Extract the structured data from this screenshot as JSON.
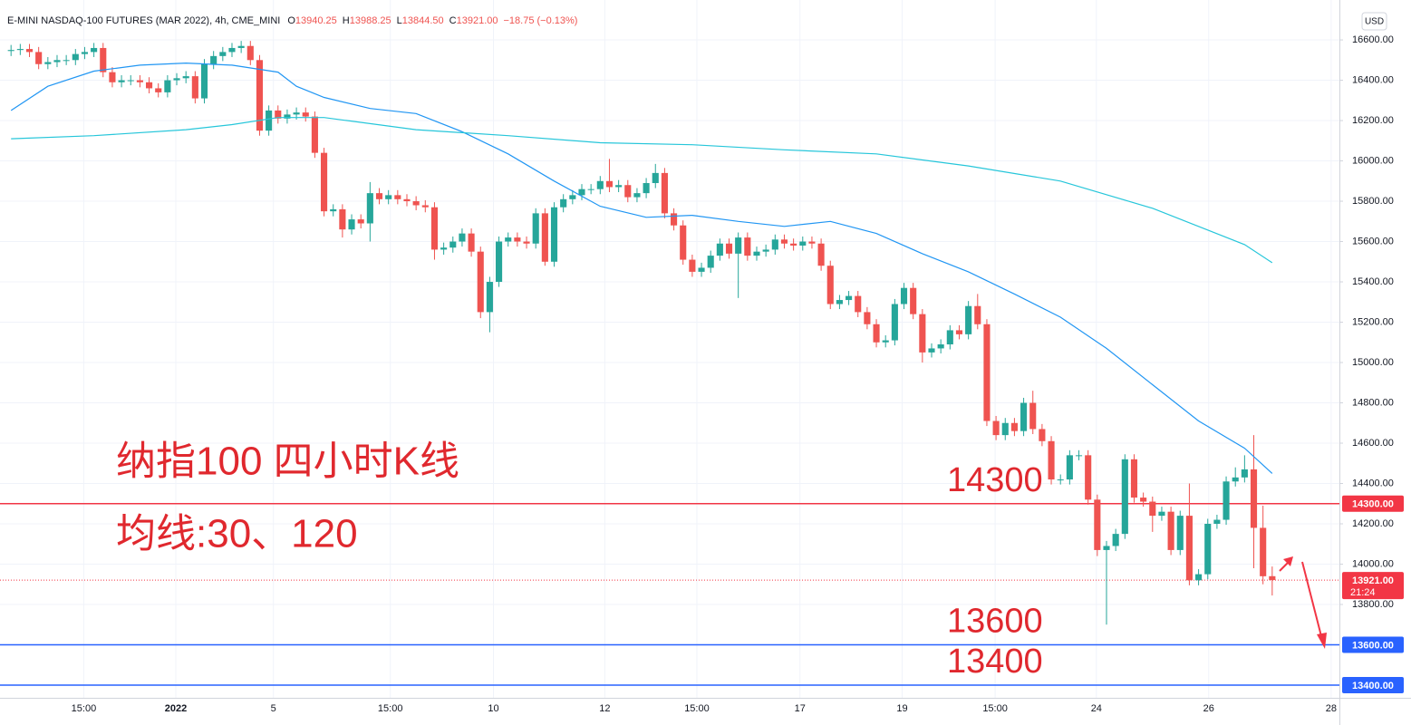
{
  "chart_data": {
    "type": "candlestick",
    "title": "E-MINI NASDAQ-100 FUTURES (MAR 2022), 4h, CME_MINI",
    "ohlc_legend": [
      {
        "label": "O",
        "value": "13940.25"
      },
      {
        "label": "H",
        "value": "13988.25"
      },
      {
        "label": "L",
        "value": "13844.50"
      },
      {
        "label": "C",
        "value": "13921.00"
      }
    ],
    "change": "−18.75 (−0.13%)",
    "currency": "USD",
    "annotations": [
      "纳指100 四小时K线",
      "均线:30、120"
    ],
    "up_color": "#26a69a",
    "down_color": "#ef5350",
    "open": [
      16545,
      16550,
      16555,
      16540,
      16480,
      16490,
      16500,
      16500,
      16530,
      16540,
      16560,
      16440,
      16390,
      16400,
      16400,
      16390,
      16360,
      16340,
      16400,
      16410,
      16420,
      16310,
      16480,
      16520,
      16540,
      16560,
      16570,
      16500,
      16150,
      16250,
      16210,
      16230,
      16240,
      16220,
      16040,
      15750,
      15760,
      15660,
      15710,
      15690,
      15840,
      15810,
      15830,
      15810,
      15800,
      15780,
      15770,
      15560,
      15570,
      15600,
      15640,
      15550,
      15250,
      15400,
      15600,
      15620,
      15600,
      15590,
      15740,
      15500,
      15770,
      15810,
      15830,
      15860,
      15860,
      15900,
      15870,
      15880,
      15820,
      15840,
      15890,
      15940,
      15740,
      15680,
      15510,
      15450,
      15470,
      15530,
      15590,
      15540,
      15620,
      15530,
      15550,
      15560,
      15610,
      15590,
      15580,
      15600,
      15590,
      15480,
      15290,
      15310,
      15330,
      15250,
      15190,
      15100,
      15110,
      15290,
      15370,
      15240,
      15050,
      15070,
      15090,
      15160,
      15140,
      15280,
      15190,
      14710,
      14640,
      14700,
      14660,
      14800,
      14670,
      14610,
      14420,
      14420,
      14540,
      14540,
      14320,
      14070,
      14090,
      14150,
      14520,
      14330,
      14310,
      14240,
      14260,
      14070,
      14240,
      13920,
      13950,
      14200,
      14220,
      14410,
      14430,
      14470,
      14180,
      13940.25
    ],
    "high": [
      16575,
      16580,
      16580,
      16565,
      16515,
      16525,
      16525,
      16555,
      16565,
      16585,
      16585,
      16465,
      16425,
      16425,
      16425,
      16415,
      16385,
      16425,
      16435,
      16445,
      16445,
      16505,
      16545,
      16565,
      16585,
      16595,
      16595,
      16525,
      16275,
      16275,
      16255,
      16265,
      16265,
      16245,
      16065,
      15785,
      15785,
      15735,
      15735,
      15895,
      15865,
      15855,
      15855,
      15835,
      15825,
      15805,
      15795,
      15595,
      15625,
      15665,
      15665,
      15575,
      15425,
      15625,
      15645,
      15645,
      15625,
      15765,
      15765,
      15795,
      15835,
      15855,
      15885,
      15885,
      15925,
      16010,
      15905,
      15905,
      15865,
      15915,
      15985,
      15965,
      15765,
      15705,
      15535,
      15495,
      15555,
      15615,
      15615,
      15645,
      15645,
      15575,
      15585,
      15635,
      15635,
      15615,
      15625,
      15625,
      15615,
      15505,
      15335,
      15355,
      15355,
      15275,
      15215,
      15135,
      15315,
      15395,
      15395,
      15265,
      15095,
      15115,
      15185,
      15185,
      15305,
      15340,
      15215,
      14735,
      14725,
      14725,
      14825,
      14860,
      14695,
      14635,
      14445,
      14565,
      14565,
      14565,
      14345,
      14115,
      14175,
      14545,
      14545,
      14355,
      14335,
      14285,
      14285,
      14265,
      14400,
      13975,
      14225,
      14245,
      14435,
      14480,
      14540,
      14640,
      14290,
      13988.25
    ],
    "low": [
      16520,
      16525,
      16515,
      16455,
      16455,
      16465,
      16475,
      16475,
      16505,
      16515,
      16415,
      16365,
      16365,
      16375,
      16365,
      16335,
      16315,
      16315,
      16375,
      16385,
      16285,
      16285,
      16455,
      16495,
      16515,
      16535,
      16475,
      16125,
      16125,
      16185,
      16185,
      16205,
      16195,
      16015,
      15725,
      15725,
      15620,
      15635,
      15665,
      15600,
      15785,
      15785,
      15785,
      15775,
      15755,
      15745,
      15510,
      15535,
      15545,
      15575,
      15525,
      15220,
      15150,
      15375,
      15575,
      15575,
      15565,
      15565,
      15480,
      15475,
      15745,
      15785,
      15805,
      15835,
      15835,
      15845,
      15845,
      15795,
      15795,
      15815,
      15865,
      15715,
      15655,
      15485,
      15425,
      15425,
      15445,
      15505,
      15515,
      15320,
      15505,
      15505,
      15525,
      15535,
      15565,
      15555,
      15555,
      15565,
      15455,
      15265,
      15265,
      15285,
      15225,
      15165,
      15075,
      15075,
      15085,
      15265,
      15215,
      15000,
      15025,
      15045,
      15065,
      15115,
      15115,
      15165,
      14685,
      14615,
      14615,
      14635,
      14635,
      14645,
      14585,
      14395,
      14395,
      14395,
      14515,
      14295,
      14040,
      13700,
      14065,
      14125,
      14305,
      14285,
      14160,
      14215,
      14045,
      14045,
      13895,
      13895,
      13925,
      14175,
      14195,
      14385,
      14405,
      13980,
      13900,
      13844.5
    ],
    "close": [
      16550,
      16555,
      16540,
      16480,
      16490,
      16500,
      16500,
      16530,
      16540,
      16560,
      16440,
      16390,
      16400,
      16400,
      16390,
      16360,
      16340,
      16400,
      16410,
      16420,
      16310,
      16480,
      16520,
      16540,
      16560,
      16570,
      16500,
      16150,
      16250,
      16210,
      16230,
      16240,
      16220,
      16040,
      15750,
      15760,
      15660,
      15710,
      15690,
      15840,
      15810,
      15830,
      15810,
      15800,
      15780,
      15770,
      15560,
      15570,
      15600,
      15640,
      15550,
      15250,
      15400,
      15600,
      15620,
      15600,
      15590,
      15740,
      15500,
      15770,
      15810,
      15830,
      15860,
      15860,
      15900,
      15870,
      15880,
      15820,
      15840,
      15890,
      15940,
      15740,
      15680,
      15510,
      15450,
      15470,
      15530,
      15590,
      15540,
      15620,
      15530,
      15550,
      15560,
      15610,
      15590,
      15580,
      15600,
      15590,
      15480,
      15290,
      15310,
      15330,
      15250,
      15190,
      15100,
      15110,
      15290,
      15370,
      15240,
      15050,
      15070,
      15090,
      15160,
      15140,
      15280,
      15190,
      14710,
      14640,
      14700,
      14660,
      14800,
      14670,
      14610,
      14420,
      14420,
      14540,
      14540,
      14320,
      14070,
      14090,
      14150,
      14520,
      14330,
      14310,
      14240,
      14260,
      14070,
      14240,
      13920,
      13950,
      14200,
      14220,
      14410,
      14430,
      14470,
      14180,
      13940,
      13921
    ],
    "series": [
      {
        "color": "#2196f3",
        "x": [
          0,
          4,
          9,
          14,
          19,
          24,
          29,
          31,
          34,
          39,
          44,
          49,
          54,
          59,
          64,
          69,
          74,
          79,
          84,
          89,
          94,
          99,
          104,
          109,
          114,
          119,
          124,
          129,
          134,
          137
        ],
        "values": [
          16250,
          16370,
          16445,
          16475,
          16485,
          16475,
          16440,
          16370,
          16315,
          16260,
          16235,
          16145,
          16035,
          15900,
          15775,
          15720,
          15730,
          15700,
          15675,
          15700,
          15640,
          15540,
          15450,
          15340,
          15225,
          15070,
          14890,
          14710,
          14575,
          14450
        ]
      },
      {
        "color": "#26c6da",
        "x": [
          0,
          9,
          19,
          24,
          29,
          34,
          44,
          54,
          64,
          74,
          84,
          94,
          104,
          114,
          124,
          134,
          137
        ],
        "values": [
          16110,
          16125,
          16155,
          16180,
          16215,
          16215,
          16155,
          16125,
          16090,
          16080,
          16055,
          16035,
          15975,
          15900,
          15765,
          15585,
          15495
        ]
      }
    ],
    "levels": [
      {
        "value": 14300,
        "label": "14300",
        "axis_label": "14300.00",
        "color": "#f23645"
      },
      {
        "value": 13600,
        "label": "13600",
        "axis_label": "13600.00",
        "color": "#2962ff"
      },
      {
        "value": 13400,
        "label": "13400",
        "axis_label": "13400.00",
        "color": "#2962ff"
      }
    ],
    "last_price": {
      "value": 13921,
      "label": "13921.00",
      "countdown": "21:24",
      "color": "#f23645"
    },
    "xlim": [
      -1.2,
      144.3
    ],
    "ylim": [
      13337,
      16798
    ],
    "yticks": [
      {
        "value": 16600,
        "label": "16600.00"
      },
      {
        "value": 16400,
        "label": "16400.00"
      },
      {
        "value": 16200,
        "label": "16200.00"
      },
      {
        "value": 16000,
        "label": "16000.00"
      },
      {
        "value": 15800,
        "label": "15800.00"
      },
      {
        "value": 15600,
        "label": "15600.00"
      },
      {
        "value": 15400,
        "label": "15400.00"
      },
      {
        "value": 15200,
        "label": "15200.00"
      },
      {
        "value": 15000,
        "label": "15000.00"
      },
      {
        "value": 14800,
        "label": "14800.00"
      },
      {
        "value": 14600,
        "label": "14600.00"
      },
      {
        "value": 14400,
        "label": "14400.00"
      },
      {
        "value": 14200,
        "label": "14200.00"
      },
      {
        "value": 14000,
        "label": "14000.00"
      },
      {
        "value": 13800,
        "label": "13800.00"
      }
    ],
    "xticks": [
      {
        "value": 7.9,
        "label": "15:00"
      },
      {
        "value": 17.9,
        "label": "2022"
      },
      {
        "value": 28.5,
        "label": "5"
      },
      {
        "value": 41.2,
        "label": "15:00"
      },
      {
        "value": 52.4,
        "label": "10"
      },
      {
        "value": 64.5,
        "label": "12"
      },
      {
        "value": 74.5,
        "label": "15:00"
      },
      {
        "value": 85.7,
        "label": "17"
      },
      {
        "value": 96.8,
        "label": "19"
      },
      {
        "value": 106.9,
        "label": "15:00"
      },
      {
        "value": 117.9,
        "label": "24"
      },
      {
        "value": 130.1,
        "label": "26"
      },
      {
        "value": 143.4,
        "label": "28"
      }
    ],
    "grid": true
  }
}
